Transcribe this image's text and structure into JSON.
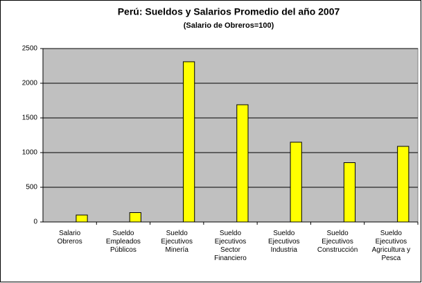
{
  "chart_data": {
    "type": "bar",
    "title": "Perú: Sueldos y Salarios Promedio del año 2007",
    "subtitle": "(Salario de Obreros=100)",
    "categories": [
      "Salario\nObreros",
      "Sueldo\nEmpleados\nPúblicos",
      "Sueldo\nEjecutivos\nMinería",
      "Sueldo\nEjecutivos\nSector\nFinanciero",
      "Sueldo\nEjecutivos\nIndustria",
      "Sueldo\nEjecutivos\nConstrucción",
      "Sueldo\nEjecutivos\nAgricultura y\nPesca"
    ],
    "values": [
      100,
      135,
      2310,
      1690,
      1150,
      855,
      1090
    ],
    "color": "#ffff00",
    "ylim": [
      0,
      2500
    ],
    "yticks": [
      0,
      500,
      1000,
      1500,
      2000,
      2500
    ],
    "grid": true
  }
}
